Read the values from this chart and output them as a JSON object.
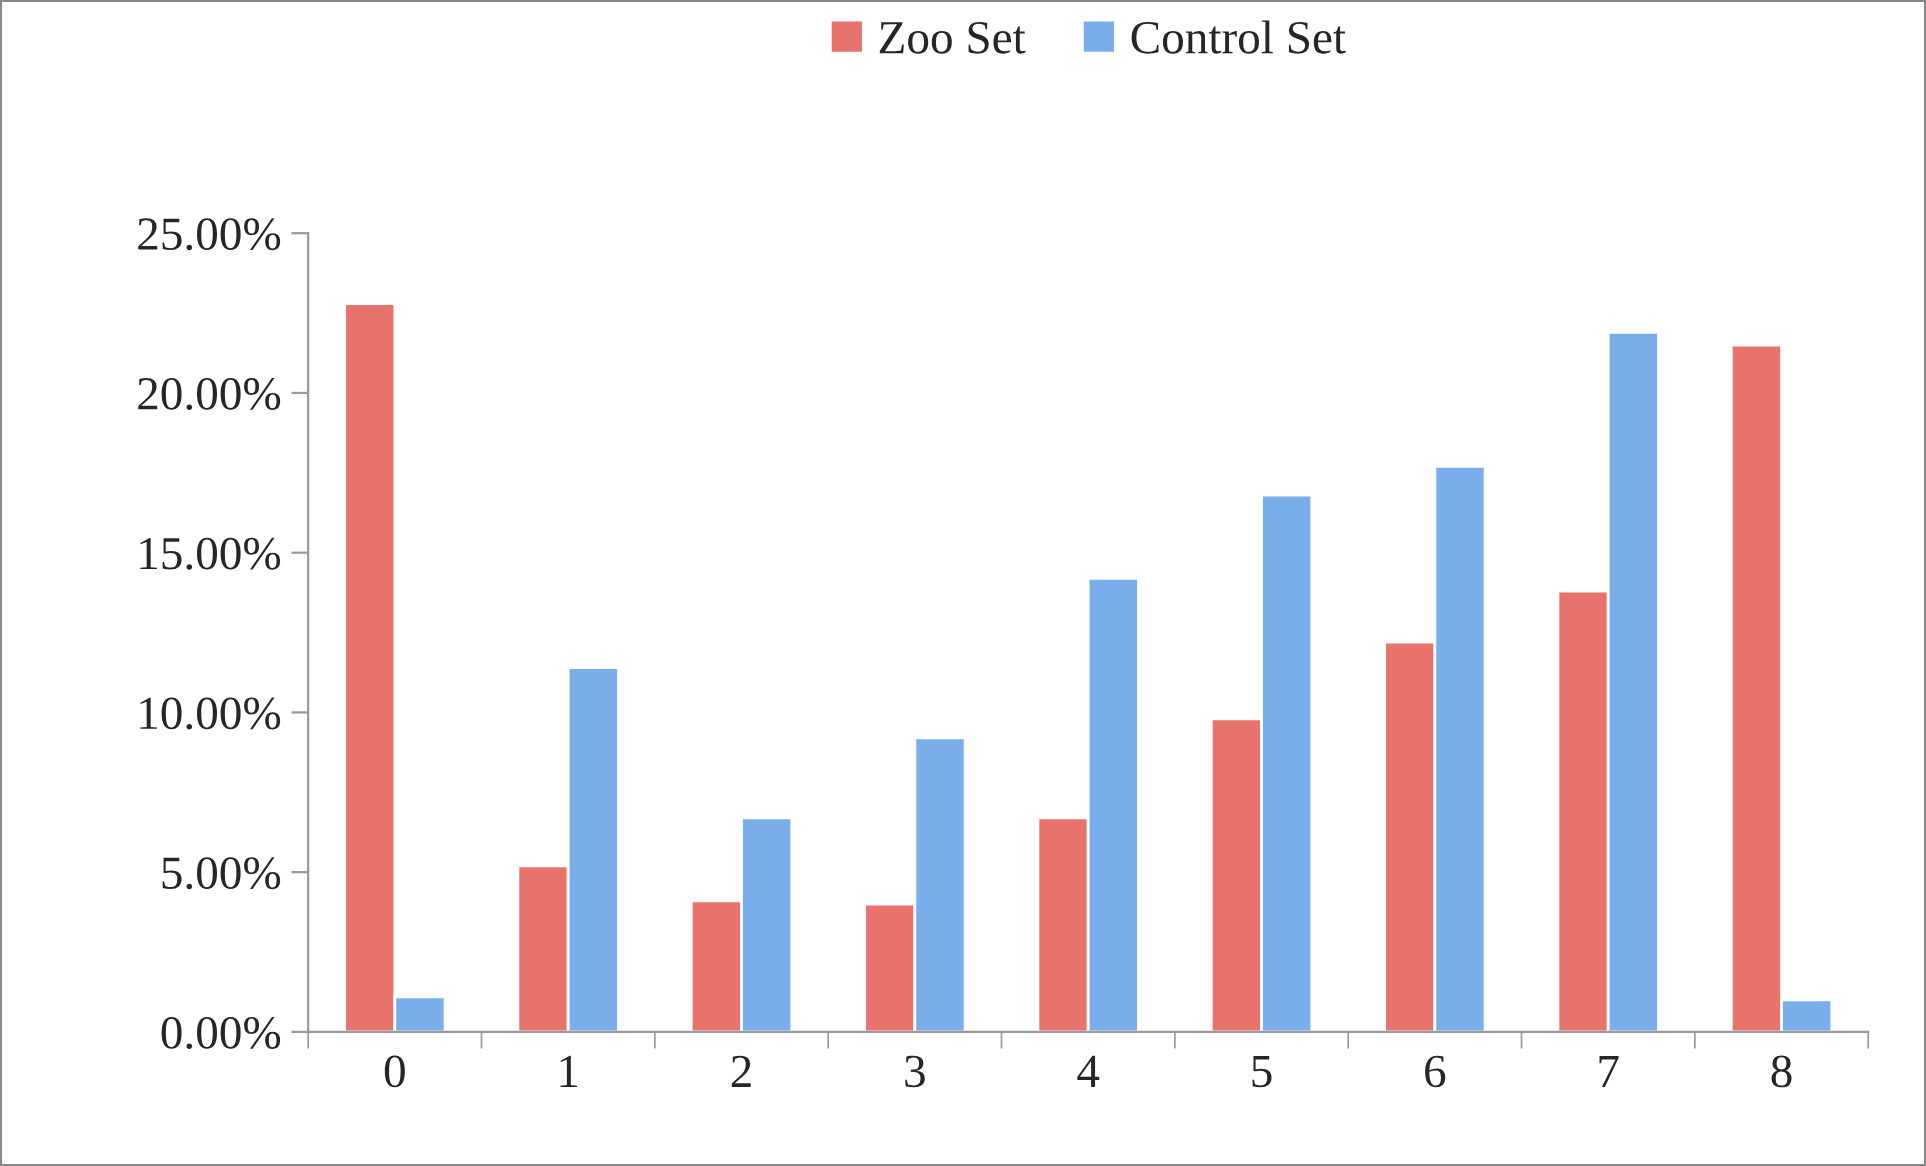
{
  "chart_data": {
    "type": "bar",
    "categories": [
      "0",
      "1",
      "2",
      "3",
      "4",
      "5",
      "6",
      "7",
      "8"
    ],
    "series": [
      {
        "name": "Zoo Set",
        "color": "#e8736c",
        "values": [
          22.8,
          5.2,
          4.1,
          4.0,
          6.7,
          9.8,
          12.2,
          13.8,
          21.5
        ]
      },
      {
        "name": "Control Set",
        "color": "#7aaeea",
        "values": [
          1.1,
          11.4,
          6.7,
          9.2,
          14.2,
          16.8,
          17.7,
          21.9,
          1.0
        ]
      }
    ],
    "ylim": [
      0,
      25
    ],
    "yticks": [
      {
        "value": 0,
        "label": "0.00%"
      },
      {
        "value": 5,
        "label": "5.00%"
      },
      {
        "value": 10,
        "label": "10.00%"
      },
      {
        "value": 15,
        "label": "15.00%"
      },
      {
        "value": 20,
        "label": "20.00%"
      },
      {
        "value": 25,
        "label": "25.00%"
      }
    ],
    "legend": "top",
    "grid": false
  }
}
